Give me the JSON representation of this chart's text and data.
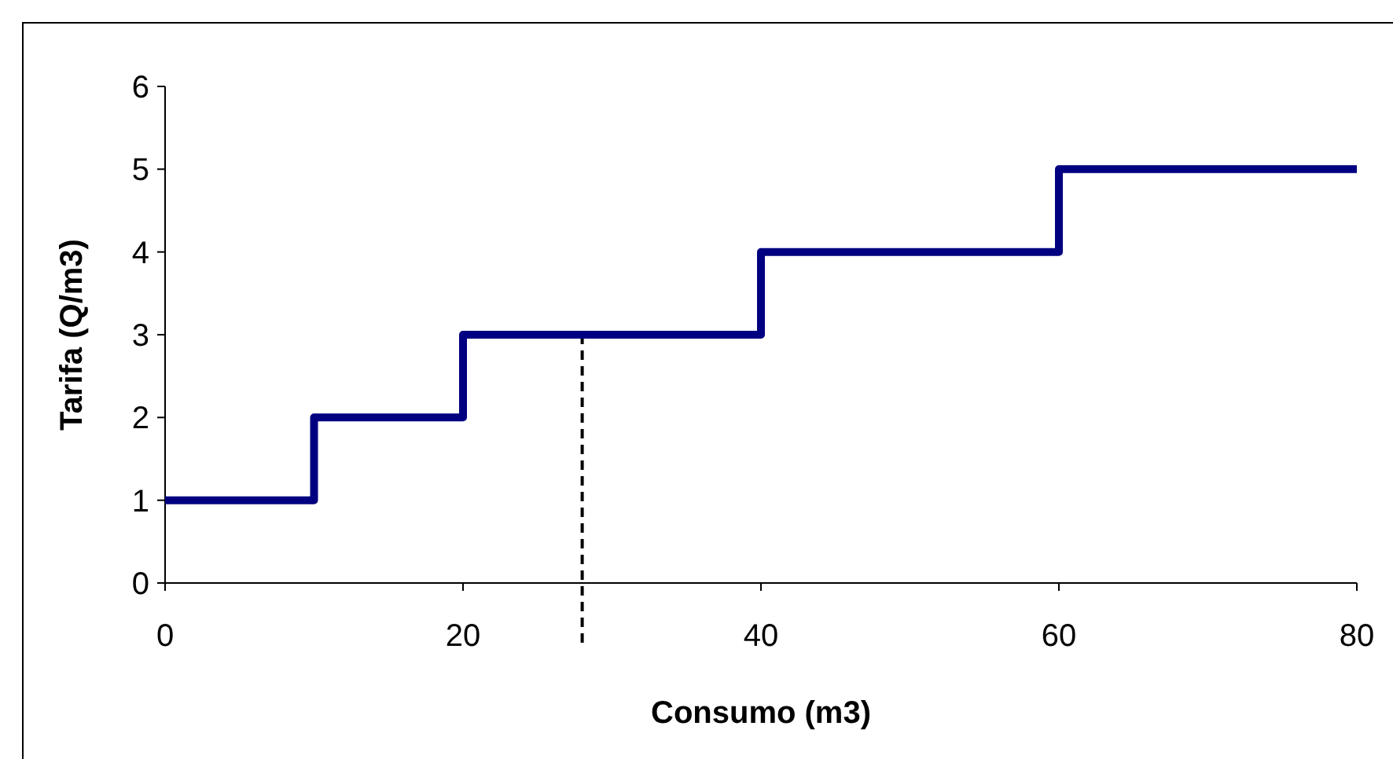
{
  "chart_data": {
    "type": "step",
    "xlabel": "Consumo (m3)",
    "ylabel": "Tarifa (Q/m3)",
    "x": [
      0,
      10,
      20,
      40,
      60,
      80
    ],
    "series": [
      {
        "color": "#000080",
        "values": [
          1,
          2,
          3,
          4,
          5,
          5
        ]
      }
    ],
    "xlim": [
      0,
      80
    ],
    "xticks": [
      0,
      20,
      40,
      60,
      80
    ],
    "ylim": [
      0,
      6
    ],
    "yticks": [
      0,
      1,
      2,
      3,
      4,
      5,
      6
    ],
    "ref_lines": [
      {
        "axis": "x",
        "value": 28,
        "color": "#000000",
        "line_style": "dashed"
      }
    ],
    "grid": false,
    "marker": "none",
    "line_style": "solid"
  }
}
